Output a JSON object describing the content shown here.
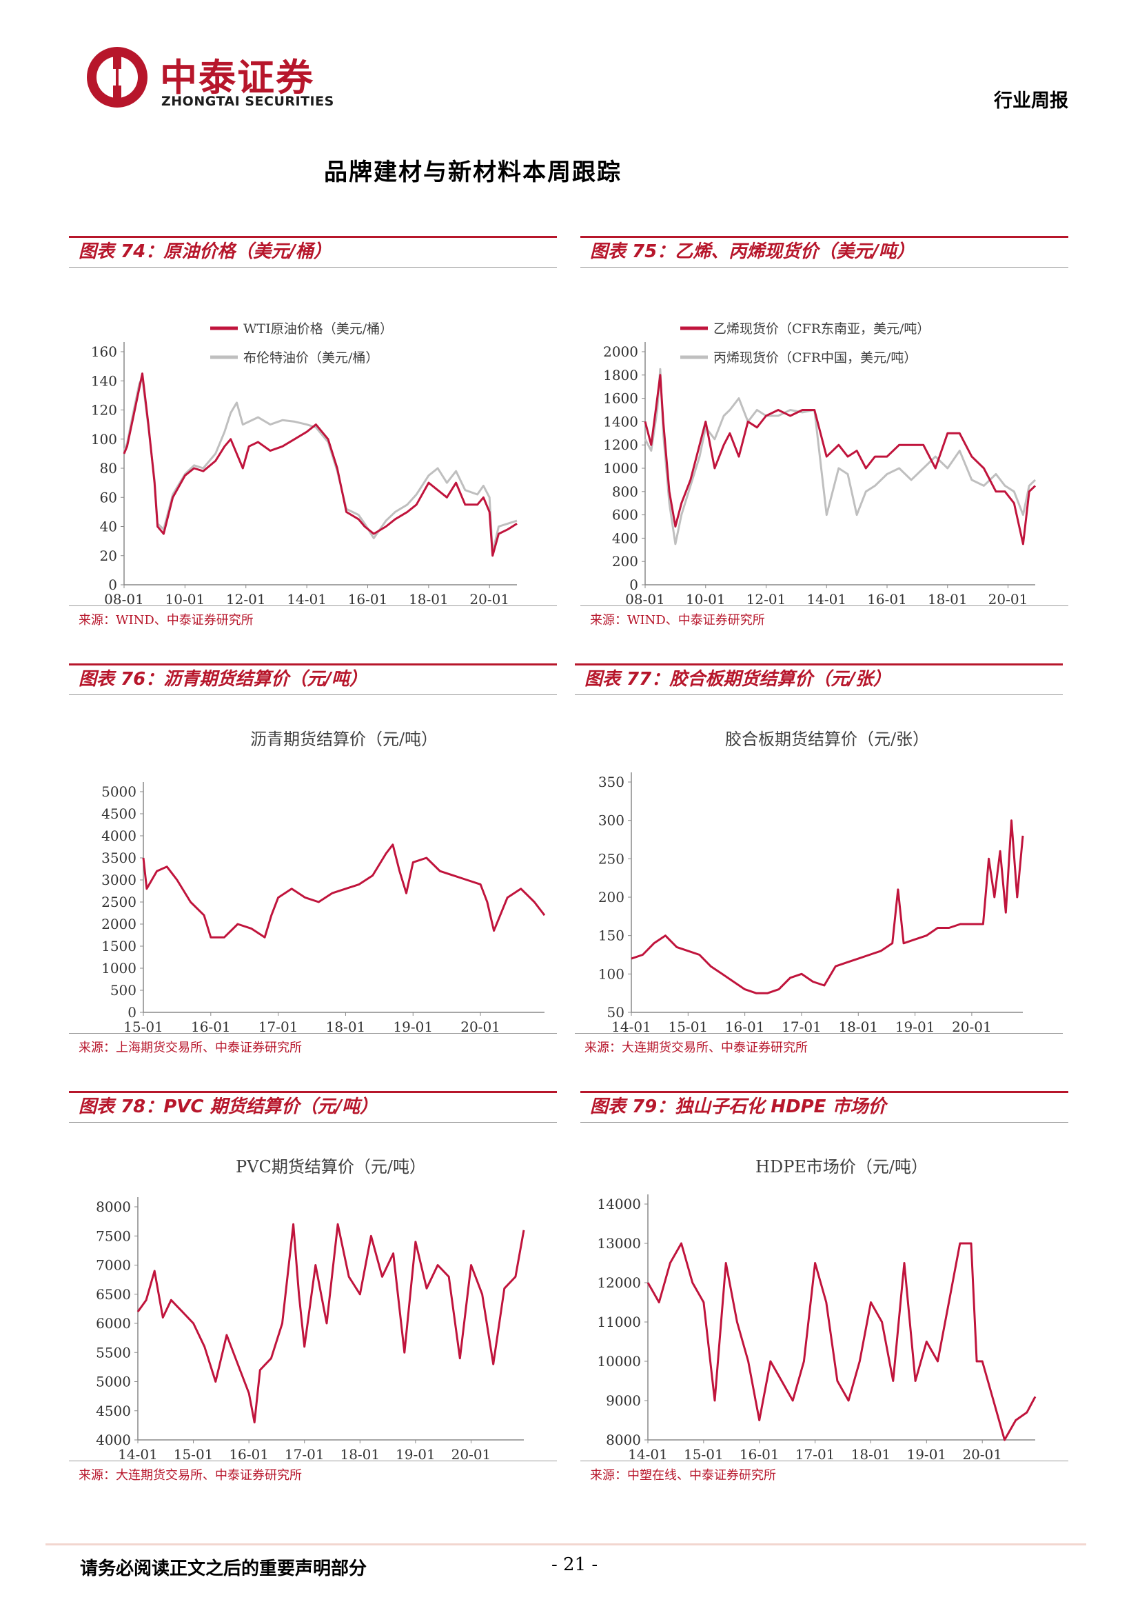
{
  "header": {
    "logo_cn": "中泰证券",
    "logo_en": "ZHONGTAI SECURITIES",
    "report_type": "行业周报",
    "brand_color": "#b7162b"
  },
  "page_title": "品牌建材与新材料本周跟踪",
  "footer": {
    "disclaimer": "请务必阅读正文之后的重要声明部分",
    "page_number": "- 21 -"
  },
  "panels": [
    {
      "id": "fig74",
      "heading": "图表 74：原油价格（美元/桶）",
      "source": "来源：WIND、中泰证券研究所"
    },
    {
      "id": "fig75",
      "heading": "图表 75：乙烯、丙烯现货价（美元/吨）",
      "source": "来源：WIND、中泰证券研究所"
    },
    {
      "id": "fig76",
      "heading": "图表 76：沥青期货结算价（元/吨）",
      "source": "来源：上海期货交易所、中泰证券研究所"
    },
    {
      "id": "fig77",
      "heading": "图表 77：胶合板期货结算价（元/张）",
      "source": "来源：大连期货交易所、中泰证券研究所"
    },
    {
      "id": "fig78",
      "heading": "图表 78：PVC 期货结算价（元/吨）",
      "source": "来源：大连期货交易所、中泰证券研究所"
    },
    {
      "id": "fig79",
      "heading": "图表 79：独山子石化 HDPE 市场价",
      "source": "来源：中塑在线、中泰证券研究所"
    }
  ],
  "chart_data": [
    {
      "type": "line",
      "title": "",
      "x_ticks": [
        "08-01",
        "10-01",
        "12-01",
        "14-01",
        "16-01",
        "18-01",
        "20-01"
      ],
      "xlim": [
        0,
        12.9
      ],
      "ylim": [
        0,
        160
      ],
      "y_ticks": [
        0,
        20,
        40,
        60,
        80,
        100,
        120,
        140,
        160
      ],
      "legend_position": "top",
      "series": [
        {
          "name": "WTI原油价格（美元/桶）",
          "color": "#c0143c",
          "x": [
            0,
            0.1,
            0.3,
            0.5,
            0.6,
            0.8,
            1.0,
            1.1,
            1.3,
            1.6,
            2.0,
            2.3,
            2.6,
            3.0,
            3.3,
            3.5,
            3.7,
            3.9,
            4.1,
            4.4,
            4.8,
            5.2,
            5.6,
            6.0,
            6.3,
            6.7,
            7.0,
            7.3,
            7.7,
            7.9,
            8.2,
            8.6,
            8.9,
            9.3,
            9.6,
            10.0,
            10.3,
            10.6,
            10.9,
            11.2,
            11.6,
            11.8,
            12.0,
            12.1,
            12.3,
            12.6,
            12.9
          ],
          "y": [
            90,
            95,
            115,
            135,
            145,
            110,
            70,
            40,
            35,
            60,
            75,
            80,
            78,
            85,
            95,
            100,
            90,
            80,
            95,
            98,
            92,
            95,
            100,
            105,
            110,
            100,
            80,
            50,
            45,
            40,
            35,
            40,
            45,
            50,
            55,
            70,
            65,
            60,
            70,
            55,
            55,
            60,
            50,
            20,
            35,
            38,
            42
          ]
        },
        {
          "name": "布伦特油价（美元/桶）",
          "color": "#bfbfbf",
          "x": [
            0,
            0.1,
            0.3,
            0.5,
            0.6,
            0.8,
            1.0,
            1.1,
            1.3,
            1.6,
            2.0,
            2.3,
            2.6,
            3.0,
            3.3,
            3.5,
            3.7,
            3.9,
            4.1,
            4.4,
            4.8,
            5.2,
            5.6,
            6.0,
            6.3,
            6.7,
            7.0,
            7.3,
            7.7,
            7.9,
            8.2,
            8.6,
            8.9,
            9.3,
            9.6,
            10.0,
            10.3,
            10.6,
            10.9,
            11.2,
            11.6,
            11.8,
            12.0,
            12.1,
            12.3,
            12.6,
            12.9
          ],
          "y": [
            92,
            97,
            118,
            138,
            142,
            108,
            72,
            42,
            38,
            62,
            76,
            82,
            80,
            90,
            105,
            118,
            125,
            110,
            112,
            115,
            110,
            113,
            112,
            110,
            108,
            98,
            78,
            52,
            48,
            42,
            32,
            44,
            50,
            55,
            62,
            75,
            80,
            70,
            78,
            65,
            62,
            68,
            60,
            22,
            40,
            42,
            44
          ]
        }
      ]
    },
    {
      "type": "line",
      "title": "",
      "x_ticks": [
        "08-01",
        "10-01",
        "12-01",
        "14-01",
        "16-01",
        "18-01",
        "20-01"
      ],
      "xlim": [
        0,
        12.9
      ],
      "ylim": [
        0,
        2000
      ],
      "y_ticks": [
        0,
        200,
        400,
        600,
        800,
        1000,
        1200,
        1400,
        1600,
        1800,
        2000
      ],
      "legend_position": "top",
      "series": [
        {
          "name": "乙烯现货价（CFR东南亚，美元/吨）",
          "color": "#c0143c",
          "x": [
            0,
            0.2,
            0.4,
            0.5,
            0.6,
            0.8,
            1.0,
            1.2,
            1.5,
            1.8,
            2.0,
            2.3,
            2.6,
            2.8,
            3.1,
            3.4,
            3.7,
            4.0,
            4.4,
            4.8,
            5.2,
            5.6,
            6.0,
            6.4,
            6.7,
            7.0,
            7.3,
            7.6,
            8.0,
            8.4,
            8.8,
            9.2,
            9.6,
            10.0,
            10.4,
            10.8,
            11.2,
            11.6,
            11.9,
            12.2,
            12.5,
            12.7,
            12.9
          ],
          "y": [
            1400,
            1200,
            1600,
            1800,
            1400,
            800,
            500,
            700,
            900,
            1200,
            1400,
            1000,
            1200,
            1300,
            1100,
            1400,
            1350,
            1450,
            1500,
            1450,
            1500,
            1500,
            1100,
            1200,
            1100,
            1150,
            1000,
            1100,
            1100,
            1200,
            1200,
            1200,
            1000,
            1300,
            1300,
            1100,
            1000,
            800,
            800,
            700,
            350,
            800,
            850
          ]
        },
        {
          "name": "丙烯现货价（CFR中国，美元/吨）",
          "color": "#bfbfbf",
          "x": [
            0,
            0.2,
            0.4,
            0.5,
            0.6,
            0.8,
            1.0,
            1.2,
            1.5,
            1.8,
            2.0,
            2.3,
            2.6,
            2.8,
            3.1,
            3.4,
            3.7,
            4.0,
            4.4,
            4.8,
            5.2,
            5.6,
            6.0,
            6.4,
            6.7,
            7.0,
            7.3,
            7.6,
            8.0,
            8.4,
            8.8,
            9.2,
            9.6,
            10.0,
            10.4,
            10.8,
            11.2,
            11.6,
            11.9,
            12.2,
            12.5,
            12.7,
            12.9
          ],
          "y": [
            1250,
            1150,
            1500,
            1850,
            1300,
            700,
            350,
            600,
            850,
            1100,
            1350,
            1250,
            1450,
            1500,
            1600,
            1400,
            1500,
            1450,
            1450,
            1500,
            1480,
            1500,
            600,
            1000,
            950,
            600,
            800,
            850,
            950,
            1000,
            900,
            1000,
            1100,
            1000,
            1150,
            900,
            850,
            950,
            850,
            800,
            600,
            850,
            900
          ]
        }
      ]
    },
    {
      "type": "line",
      "title": "沥青期货结算价（元/吨）",
      "x_ticks": [
        "15-01",
        "16-01",
        "17-01",
        "18-01",
        "19-01",
        "20-01"
      ],
      "xlim": [
        0,
        5.95
      ],
      "ylim": [
        0,
        5000
      ],
      "y_ticks": [
        0,
        500,
        1000,
        1500,
        2000,
        2500,
        3000,
        3500,
        4000,
        4500,
        5000
      ],
      "series": [
        {
          "name": "",
          "color": "#c0143c",
          "x": [
            0,
            0.05,
            0.2,
            0.35,
            0.5,
            0.7,
            0.9,
            1.0,
            1.2,
            1.4,
            1.6,
            1.8,
            1.9,
            2.0,
            2.2,
            2.4,
            2.6,
            2.8,
            3.0,
            3.2,
            3.4,
            3.6,
            3.7,
            3.8,
            3.9,
            4.0,
            4.2,
            4.4,
            4.6,
            4.8,
            5.0,
            5.1,
            5.2,
            5.4,
            5.6,
            5.8,
            5.95
          ],
          "y": [
            3500,
            2800,
            3200,
            3300,
            3000,
            2500,
            2200,
            1700,
            1700,
            2000,
            1900,
            1700,
            2200,
            2600,
            2800,
            2600,
            2500,
            2700,
            2800,
            2900,
            3100,
            3600,
            3800,
            3200,
            2700,
            3400,
            3500,
            3200,
            3100,
            3000,
            2900,
            2500,
            1850,
            2600,
            2800,
            2500,
            2200
          ]
        }
      ]
    },
    {
      "type": "line",
      "title": "胶合板期货结算价（元/张）",
      "x_ticks": [
        "14-01",
        "15-01",
        "16-01",
        "17-01",
        "18-01",
        "19-01",
        "20-01"
      ],
      "xlim": [
        0,
        6.9
      ],
      "ylim": [
        50,
        350
      ],
      "y_ticks": [
        50,
        100,
        150,
        200,
        250,
        300,
        350
      ],
      "series": [
        {
          "name": "",
          "color": "#c0143c",
          "x": [
            0,
            0.2,
            0.4,
            0.6,
            0.8,
            1.0,
            1.2,
            1.4,
            1.6,
            1.8,
            2.0,
            2.2,
            2.4,
            2.6,
            2.8,
            3.0,
            3.2,
            3.4,
            3.6,
            3.8,
            4.0,
            4.2,
            4.4,
            4.6,
            4.7,
            4.8,
            5.0,
            5.2,
            5.4,
            5.6,
            5.8,
            6.0,
            6.2,
            6.3,
            6.4,
            6.5,
            6.6,
            6.7,
            6.8,
            6.9
          ],
          "y": [
            120,
            125,
            140,
            150,
            135,
            130,
            125,
            110,
            100,
            90,
            80,
            75,
            75,
            80,
            95,
            100,
            90,
            85,
            110,
            115,
            120,
            125,
            130,
            140,
            210,
            140,
            145,
            150,
            160,
            160,
            165,
            165,
            165,
            250,
            200,
            260,
            180,
            300,
            200,
            280
          ]
        }
      ]
    },
    {
      "type": "line",
      "title": "PVC期货结算价（元/吨）",
      "x_ticks": [
        "14-01",
        "15-01",
        "16-01",
        "17-01",
        "18-01",
        "19-01",
        "20-01"
      ],
      "xlim": [
        0,
        6.95
      ],
      "ylim": [
        4000,
        8000
      ],
      "y_ticks": [
        4000,
        4500,
        5000,
        5500,
        6000,
        6500,
        7000,
        7500,
        8000
      ],
      "series": [
        {
          "name": "",
          "color": "#c0143c",
          "x": [
            0,
            0.15,
            0.3,
            0.45,
            0.6,
            0.8,
            1.0,
            1.2,
            1.4,
            1.6,
            1.8,
            2.0,
            2.1,
            2.2,
            2.4,
            2.6,
            2.8,
            2.9,
            3.0,
            3.2,
            3.4,
            3.6,
            3.8,
            4.0,
            4.2,
            4.4,
            4.6,
            4.8,
            5.0,
            5.2,
            5.4,
            5.6,
            5.8,
            6.0,
            6.2,
            6.4,
            6.6,
            6.8,
            6.95
          ],
          "y": [
            6200,
            6400,
            6900,
            6100,
            6400,
            6200,
            6000,
            5600,
            5000,
            5800,
            5300,
            4800,
            4300,
            5200,
            5400,
            6000,
            7700,
            6500,
            5600,
            7000,
            6000,
            7700,
            6800,
            6500,
            7500,
            6800,
            7200,
            5500,
            7400,
            6600,
            7000,
            6800,
            5400,
            7000,
            6500,
            5300,
            6600,
            6800,
            7600
          ]
        }
      ]
    },
    {
      "type": "line",
      "title": "HDPE市场价（元/吨）",
      "x_ticks": [
        "14-01",
        "15-01",
        "16-01",
        "17-01",
        "18-01",
        "19-01",
        "20-01"
      ],
      "xlim": [
        0,
        6.95
      ],
      "ylim": [
        8000,
        14000
      ],
      "y_ticks": [
        8000,
        9000,
        10000,
        11000,
        12000,
        13000,
        14000
      ],
      "series": [
        {
          "name": "",
          "color": "#c0143c",
          "x": [
            0,
            0.2,
            0.4,
            0.6,
            0.8,
            1.0,
            1.2,
            1.4,
            1.6,
            1.8,
            2.0,
            2.2,
            2.4,
            2.6,
            2.8,
            3.0,
            3.2,
            3.4,
            3.6,
            3.8,
            4.0,
            4.2,
            4.4,
            4.6,
            4.8,
            5.0,
            5.2,
            5.4,
            5.6,
            5.8,
            5.9,
            6.0,
            6.2,
            6.4,
            6.6,
            6.8,
            6.95
          ],
          "y": [
            12000,
            11500,
            12500,
            13000,
            12000,
            11500,
            9000,
            12500,
            11000,
            10000,
            8500,
            10000,
            9500,
            9000,
            10000,
            12500,
            11500,
            9500,
            9000,
            10000,
            11500,
            11000,
            9500,
            12500,
            9500,
            10500,
            10000,
            11500,
            13000,
            13000,
            10000,
            10000,
            9000,
            8000,
            8500,
            8700,
            9100
          ]
        }
      ]
    }
  ]
}
